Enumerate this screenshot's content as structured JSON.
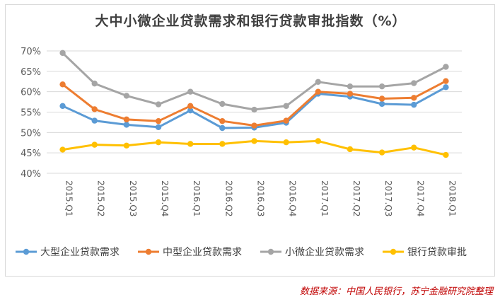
{
  "chart_data": {
    "type": "line",
    "title": "大中小微企业贷款需求和银行贷款审批指数（%）",
    "xlabel": "",
    "ylabel": "",
    "categories": [
      "2015.Q1",
      "2015.Q2",
      "2015.Q3",
      "2015.Q4",
      "2016.Q1",
      "2016.Q2",
      "2016.Q3",
      "2016.Q4",
      "2017.Q1",
      "2017.Q2",
      "2017.Q3",
      "2017.Q4",
      "2018.Q1"
    ],
    "ylim": [
      40,
      70
    ],
    "yticks": [
      "40%",
      "45%",
      "50%",
      "55%",
      "60%",
      "65%",
      "70%"
    ],
    "grid": true,
    "legend_position": "bottom",
    "series": [
      {
        "name": "大型企业贷款需求",
        "color": "#5b9bd5",
        "values": [
          56.5,
          52.9,
          51.9,
          51.3,
          55.4,
          51.1,
          51.2,
          52.4,
          59.5,
          58.8,
          57.0,
          56.8,
          61.1
        ]
      },
      {
        "name": "中型企业贷款需求",
        "color": "#ed7d31",
        "values": [
          61.8,
          55.7,
          53.2,
          52.8,
          56.5,
          52.8,
          51.7,
          52.9,
          60.0,
          59.5,
          58.3,
          58.5,
          62.6
        ]
      },
      {
        "name": "小微企业贷款需求",
        "color": "#a5a5a5",
        "values": [
          69.5,
          62.0,
          59.0,
          56.9,
          60.0,
          57.0,
          55.6,
          56.5,
          62.4,
          61.3,
          61.3,
          62.1,
          66.1
        ]
      },
      {
        "name": "银行贷款审批",
        "color": "#ffc000",
        "values": [
          45.8,
          47.0,
          46.8,
          47.6,
          47.2,
          47.2,
          47.9,
          47.6,
          47.9,
          45.9,
          45.1,
          46.3,
          44.5
        ]
      }
    ]
  },
  "source": "数据来源：中国人民银行，苏宁金融研究院整理"
}
